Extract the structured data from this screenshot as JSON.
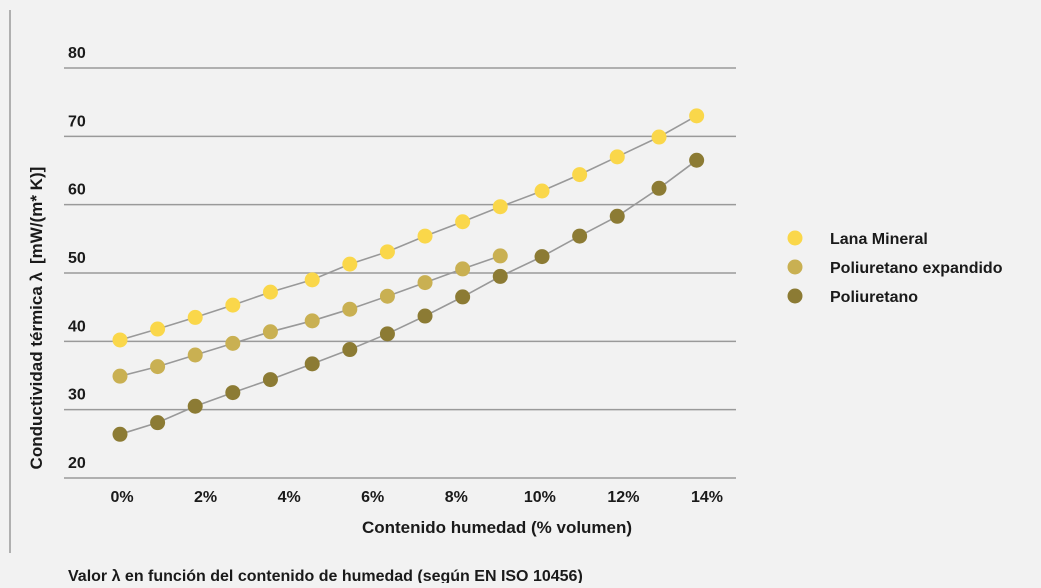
{
  "chart_data": {
    "type": "line",
    "xlabel": "Contenido humedad (% volumen)",
    "ylabel_text": "Conductividad térmica  λ",
    "ylabel_unit": "[mW/(m* K)]",
    "caption": "Valor λ en función del contenido de humedad (según EN ISO 10456)",
    "ylim": [
      20,
      80
    ],
    "xlim": [
      0,
      14
    ],
    "y_ticks": [
      20,
      30,
      40,
      50,
      60,
      70,
      80
    ],
    "x_ticks": [
      {
        "value": 0,
        "label": "0%"
      },
      {
        "value": 2,
        "label": "2%"
      },
      {
        "value": 4,
        "label": "4%"
      },
      {
        "value": 6,
        "label": "6%"
      },
      {
        "value": 8,
        "label": "8%"
      },
      {
        "value": 10,
        "label": "10%"
      },
      {
        "value": 12,
        "label": "12%"
      },
      {
        "value": 14,
        "label": "14%"
      }
    ],
    "grid": "horizontal",
    "legend_position": "right",
    "series": [
      {
        "name": "Lana Mineral",
        "color": "#fad74a",
        "x": [
          0,
          0.9,
          1.8,
          2.7,
          3.6,
          4.6,
          5.5,
          6.4,
          7.3,
          8.2,
          9.1,
          10.1,
          11.0,
          11.9,
          12.9,
          13.8
        ],
        "y": [
          40.2,
          41.8,
          43.5,
          45.3,
          47.2,
          49.0,
          51.3,
          53.1,
          55.4,
          57.5,
          59.7,
          62.0,
          64.4,
          67.0,
          69.9,
          73.0
        ]
      },
      {
        "name": "Poliuretano expandido",
        "color": "#c9b052",
        "x": [
          0,
          0.9,
          1.8,
          2.7,
          3.6,
          4.6,
          5.5,
          6.4,
          7.3,
          8.2,
          9.1
        ],
        "y": [
          34.9,
          36.3,
          38.0,
          39.7,
          41.4,
          43.0,
          44.7,
          46.6,
          48.6,
          50.6,
          52.5
        ]
      },
      {
        "name": "Poliuretano",
        "color": "#8c7b34",
        "x": [
          0,
          0.9,
          1.8,
          2.7,
          3.6,
          4.6,
          5.5,
          6.4,
          7.3,
          8.2,
          9.1,
          10.1,
          11.0,
          11.9,
          12.9,
          13.8
        ],
        "y": [
          26.4,
          28.1,
          30.5,
          32.5,
          34.4,
          36.7,
          38.8,
          41.1,
          43.7,
          46.5,
          49.5,
          52.4,
          55.4,
          58.3,
          62.4,
          66.5
        ]
      }
    ]
  }
}
